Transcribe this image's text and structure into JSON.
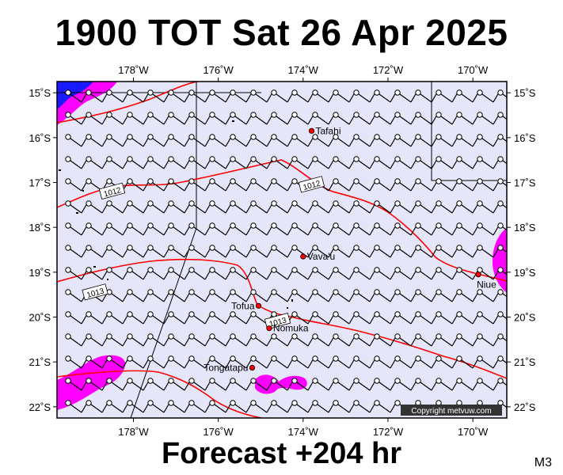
{
  "title": "1900 TOT Sat 26 Apr 2025",
  "footer": "Forecast +204 hr",
  "model_code": "M3",
  "copyright": "Copyright metvuw.com",
  "map": {
    "lon_range": [
      -179.8,
      -169.2
    ],
    "lat_range": [
      -22.25,
      -14.75
    ],
    "lon_ticks": [
      {
        "value": -178,
        "label": "178˚W"
      },
      {
        "value": -176,
        "label": "176˚W"
      },
      {
        "value": -174,
        "label": "174˚W"
      },
      {
        "value": -172,
        "label": "172˚W"
      },
      {
        "value": -170,
        "label": "170˚W"
      }
    ],
    "lat_ticks": [
      {
        "value": -15,
        "label": "15˚S"
      },
      {
        "value": -16,
        "label": "16˚S"
      },
      {
        "value": -17,
        "label": "17˚S"
      },
      {
        "value": -18,
        "label": "18˚S"
      },
      {
        "value": -19,
        "label": "19˚S"
      },
      {
        "value": -20,
        "label": "20˚S"
      },
      {
        "value": -21,
        "label": "21˚S"
      },
      {
        "value": -22,
        "label": "22˚S"
      }
    ],
    "colors": {
      "background": "#e6e6fa",
      "isobar": "#ff0000",
      "rain_heavy": "#ff00ff",
      "rain_light": "#f6a8f6",
      "rain_deep": "#0000ff"
    },
    "places": [
      {
        "name": "Tafahi",
        "lon": -173.8,
        "lat": -15.85
      },
      {
        "name": "Vava'u",
        "lon": -174.0,
        "lat": -18.65
      },
      {
        "name": "Tofua",
        "lon": -175.05,
        "lat": -19.75
      },
      {
        "name": "Nomuka",
        "lon": -174.8,
        "lat": -20.25
      },
      {
        "name": "Tongatapu",
        "lon": -175.2,
        "lat": -21.13
      },
      {
        "name": "Niue",
        "lon": -169.87,
        "lat": -19.05
      }
    ],
    "isobar_labels": [
      {
        "text": "1012",
        "lon": -178.5,
        "lat": -17.2
      },
      {
        "text": "1012",
        "lon": -173.8,
        "lat": -17.05
      },
      {
        "text": "1013",
        "lon": -178.9,
        "lat": -19.45
      },
      {
        "text": "1013",
        "lon": -174.6,
        "lat": -20.1
      }
    ],
    "wind_default_direction": "southeast",
    "wind_icon": "wind-barb-icon"
  }
}
